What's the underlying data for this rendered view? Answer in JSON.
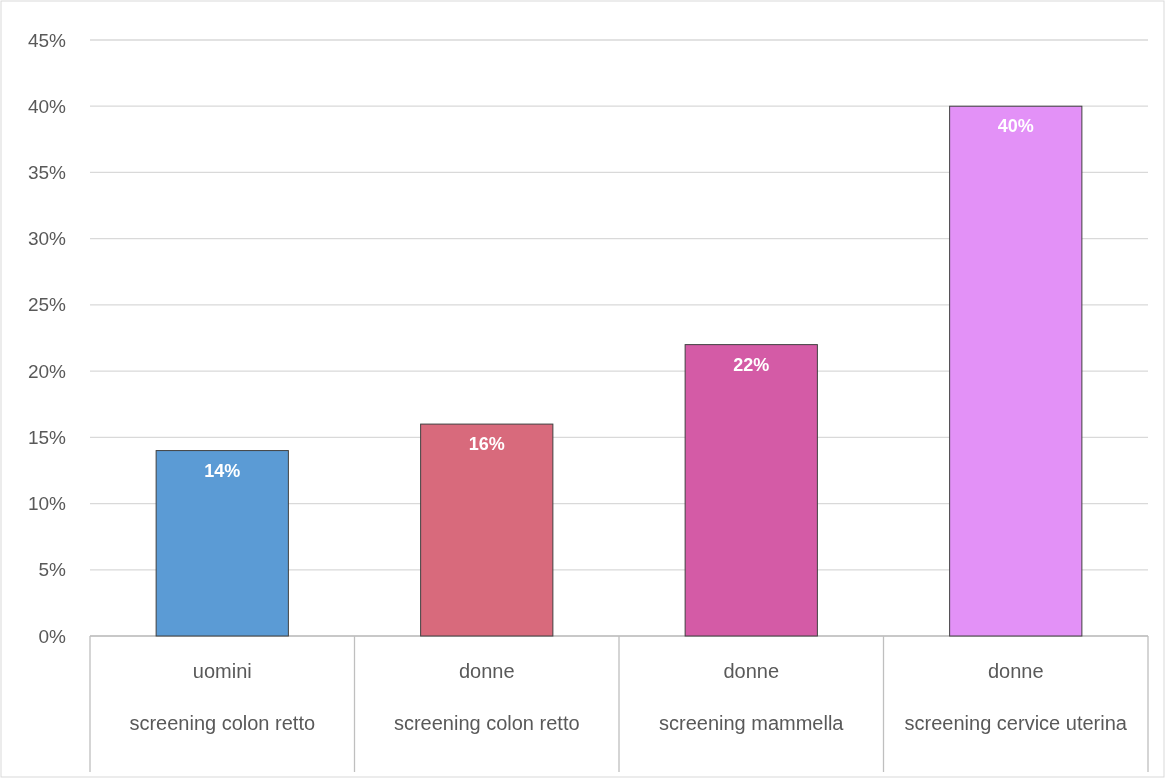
{
  "chart_data": {
    "type": "bar",
    "categories": [
      "uomini\nscreening colon retto",
      "donne\nscreening colon retto",
      "donne\nscreening mammella",
      "donne\nscreening cervice uterina"
    ],
    "values": [
      14,
      16,
      22,
      40
    ],
    "colors": [
      "#5b9bd5",
      "#d86a7c",
      "#d45ba6",
      "#e391f7"
    ],
    "value_labels": [
      "14%",
      "16%",
      "22%",
      "40%"
    ],
    "ylim": [
      0,
      45
    ],
    "yticks": [
      {
        "value": 0,
        "label": "0%"
      },
      {
        "value": 5,
        "label": "5%"
      },
      {
        "value": 10,
        "label": "10%"
      },
      {
        "value": 15,
        "label": "15%"
      },
      {
        "value": 20,
        "label": "20%"
      },
      {
        "value": 25,
        "label": "25%"
      },
      {
        "value": 30,
        "label": "30%"
      },
      {
        "value": 35,
        "label": "35%"
      },
      {
        "value": 40,
        "label": "40%"
      },
      {
        "value": 45,
        "label": "45%"
      }
    ],
    "grid": "y"
  }
}
